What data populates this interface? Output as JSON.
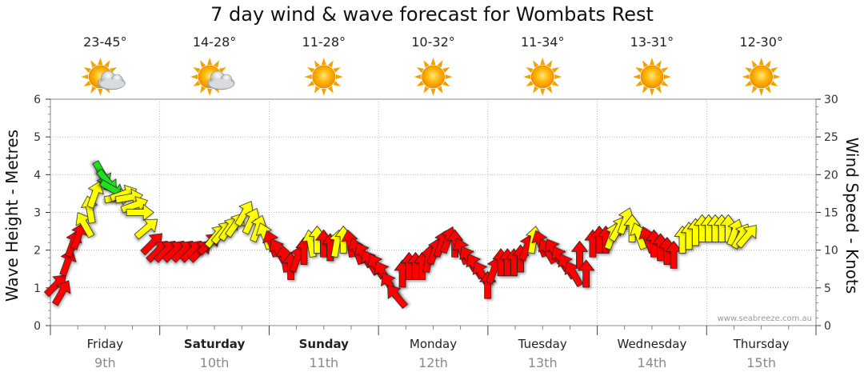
{
  "chart_data": {
    "type": "line",
    "title": "7 day wind & wave forecast for Wombats Rest",
    "ylabel_left": "Wave Height - Metres",
    "ylabel_right": "Wind Speed - Knots",
    "ylim_left": [
      0,
      6
    ],
    "ylim_right": [
      0,
      30
    ],
    "yticks_left": [
      "0",
      "1",
      "2",
      "3",
      "4",
      "5",
      "6"
    ],
    "yticks_right": [
      "0",
      "5",
      "10",
      "15",
      "20",
      "25",
      "30"
    ],
    "grid": "dotted vertical and horizontal",
    "watermark": "www.seabreeze.com.au",
    "days": [
      {
        "day": "Friday",
        "date": "9th",
        "temps": "23-45°",
        "weather": "partly-cloudy",
        "bold": false
      },
      {
        "day": "Saturday",
        "date": "10th",
        "temps": "14-28°",
        "weather": "partly-cloudy",
        "bold": true
      },
      {
        "day": "Sunday",
        "date": "11th",
        "temps": "11-28°",
        "weather": "sunny",
        "bold": true
      },
      {
        "day": "Monday",
        "date": "12th",
        "temps": "10-32°",
        "weather": "sunny",
        "bold": false
      },
      {
        "day": "Tuesday",
        "date": "13th",
        "temps": "11-34°",
        "weather": "sunny",
        "bold": false
      },
      {
        "day": "Wednesday",
        "date": "14th",
        "temps": "13-31°",
        "weather": "sunny",
        "bold": false
      },
      {
        "day": "Thursday",
        "date": "15th",
        "temps": "12-30°",
        "weather": "sunny",
        "bold": false
      }
    ],
    "wind_arrow_colors": {
      "red": "#ff0000",
      "yellow": "#ffff00",
      "green": "#22dd22"
    },
    "wind_points": [
      {
        "t": 0.0,
        "speed": 5.5,
        "dir": 225,
        "c": "red"
      },
      {
        "t": 0.05,
        "speed": 4.5,
        "dir": 210,
        "c": "red"
      },
      {
        "t": 0.1,
        "speed": 8.5,
        "dir": 200,
        "c": "red"
      },
      {
        "t": 0.15,
        "speed": 11.0,
        "dir": 200,
        "c": "red"
      },
      {
        "t": 0.2,
        "speed": 12.0,
        "dir": 200,
        "c": "red"
      },
      {
        "t": 0.25,
        "speed": 13.5,
        "dir": 150,
        "c": "yellow"
      },
      {
        "t": 0.3,
        "speed": 15.5,
        "dir": 170,
        "c": "yellow"
      },
      {
        "t": 0.35,
        "speed": 17.5,
        "dir": 200,
        "c": "yellow"
      },
      {
        "t": 0.42,
        "speed": 20.0,
        "dir": 330,
        "c": "green"
      },
      {
        "t": 0.47,
        "speed": 19.0,
        "dir": 320,
        "c": "green"
      },
      {
        "t": 0.52,
        "speed": 18.0,
        "dir": 300,
        "c": "green"
      },
      {
        "t": 0.57,
        "speed": 17.0,
        "dir": 260,
        "c": "yellow"
      },
      {
        "t": 0.62,
        "speed": 17.5,
        "dir": 250,
        "c": "yellow"
      },
      {
        "t": 0.67,
        "speed": 17.0,
        "dir": 260,
        "c": "yellow"
      },
      {
        "t": 0.72,
        "speed": 16.0,
        "dir": 250,
        "c": "yellow"
      },
      {
        "t": 0.77,
        "speed": 15.0,
        "dir": 270,
        "c": "yellow"
      },
      {
        "t": 0.83,
        "speed": 13.0,
        "dir": 230,
        "c": "yellow"
      },
      {
        "t": 0.88,
        "speed": 11.0,
        "dir": 225,
        "c": "red"
      },
      {
        "t": 0.93,
        "speed": 10.0,
        "dir": 225,
        "c": "red"
      },
      {
        "t": 1.0,
        "speed": 10.0,
        "dir": 225,
        "c": "red"
      },
      {
        "t": 1.08,
        "speed": 10.0,
        "dir": 225,
        "c": "red"
      },
      {
        "t": 1.16,
        "speed": 10.0,
        "dir": 225,
        "c": "red"
      },
      {
        "t": 1.24,
        "speed": 10.0,
        "dir": 225,
        "c": "red"
      },
      {
        "t": 1.32,
        "speed": 10.0,
        "dir": 225,
        "c": "red"
      },
      {
        "t": 1.4,
        "speed": 11.0,
        "dir": 225,
        "c": "red"
      },
      {
        "t": 1.46,
        "speed": 12.0,
        "dir": 220,
        "c": "yellow"
      },
      {
        "t": 1.52,
        "speed": 12.5,
        "dir": 220,
        "c": "yellow"
      },
      {
        "t": 1.58,
        "speed": 13.0,
        "dir": 215,
        "c": "yellow"
      },
      {
        "t": 1.64,
        "speed": 13.5,
        "dir": 215,
        "c": "yellow"
      },
      {
        "t": 1.72,
        "speed": 15.0,
        "dir": 210,
        "c": "yellow"
      },
      {
        "t": 1.78,
        "speed": 14.0,
        "dir": 205,
        "c": "yellow"
      },
      {
        "t": 1.84,
        "speed": 13.0,
        "dir": 200,
        "c": "yellow"
      },
      {
        "t": 1.9,
        "speed": 12.0,
        "dir": 160,
        "c": "yellow"
      },
      {
        "t": 1.96,
        "speed": 11.0,
        "dir": 160,
        "c": "red"
      },
      {
        "t": 2.02,
        "speed": 10.0,
        "dir": 150,
        "c": "red"
      },
      {
        "t": 2.08,
        "speed": 9.0,
        "dir": 170,
        "c": "red"
      },
      {
        "t": 2.14,
        "speed": 8.0,
        "dir": 180,
        "c": "red"
      },
      {
        "t": 2.2,
        "speed": 9.0,
        "dir": 200,
        "c": "red"
      },
      {
        "t": 2.26,
        "speed": 10.0,
        "dir": 180,
        "c": "red"
      },
      {
        "t": 2.32,
        "speed": 11.0,
        "dir": 170,
        "c": "yellow"
      },
      {
        "t": 2.38,
        "speed": 11.5,
        "dir": 180,
        "c": "yellow"
      },
      {
        "t": 2.44,
        "speed": 11.0,
        "dir": 180,
        "c": "red"
      },
      {
        "t": 2.5,
        "speed": 10.5,
        "dir": 180,
        "c": "red"
      },
      {
        "t": 2.56,
        "speed": 11.0,
        "dir": 190,
        "c": "yellow"
      },
      {
        "t": 2.62,
        "speed": 11.5,
        "dir": 180,
        "c": "yellow"
      },
      {
        "t": 2.68,
        "speed": 11.0,
        "dir": 170,
        "c": "red"
      },
      {
        "t": 2.74,
        "speed": 10.0,
        "dir": 160,
        "c": "red"
      },
      {
        "t": 2.8,
        "speed": 9.5,
        "dir": 150,
        "c": "red"
      },
      {
        "t": 2.86,
        "speed": 8.5,
        "dir": 150,
        "c": "red"
      },
      {
        "t": 2.92,
        "speed": 8.0,
        "dir": 150,
        "c": "red"
      },
      {
        "t": 2.98,
        "speed": 7.0,
        "dir": 150,
        "c": "red"
      },
      {
        "t": 3.04,
        "speed": 5.5,
        "dir": 150,
        "c": "red"
      },
      {
        "t": 3.1,
        "speed": 4.0,
        "dir": 140,
        "c": "red"
      },
      {
        "t": 3.16,
        "speed": 7.0,
        "dir": 180,
        "c": "red"
      },
      {
        "t": 3.22,
        "speed": 8.0,
        "dir": 180,
        "c": "red"
      },
      {
        "t": 3.28,
        "speed": 8.0,
        "dir": 180,
        "c": "red"
      },
      {
        "t": 3.34,
        "speed": 8.0,
        "dir": 180,
        "c": "red"
      },
      {
        "t": 3.4,
        "speed": 9.0,
        "dir": 190,
        "c": "red"
      },
      {
        "t": 3.46,
        "speed": 10.0,
        "dir": 200,
        "c": "red"
      },
      {
        "t": 3.52,
        "speed": 11.0,
        "dir": 200,
        "c": "red"
      },
      {
        "t": 3.58,
        "speed": 11.5,
        "dir": 200,
        "c": "red"
      },
      {
        "t": 3.64,
        "speed": 11.0,
        "dir": 180,
        "c": "red"
      },
      {
        "t": 3.7,
        "speed": 10.0,
        "dir": 160,
        "c": "red"
      },
      {
        "t": 3.76,
        "speed": 9.0,
        "dir": 150,
        "c": "red"
      },
      {
        "t": 3.82,
        "speed": 8.0,
        "dir": 150,
        "c": "red"
      },
      {
        "t": 3.88,
        "speed": 7.0,
        "dir": 150,
        "c": "red"
      },
      {
        "t": 3.94,
        "speed": 5.5,
        "dir": 180,
        "c": "red"
      },
      {
        "t": 4.0,
        "speed": 7.5,
        "dir": 200,
        "c": "red"
      },
      {
        "t": 4.06,
        "speed": 8.5,
        "dir": 180,
        "c": "red"
      },
      {
        "t": 4.12,
        "speed": 8.5,
        "dir": 180,
        "c": "red"
      },
      {
        "t": 4.18,
        "speed": 8.5,
        "dir": 180,
        "c": "red"
      },
      {
        "t": 4.24,
        "speed": 9.0,
        "dir": 180,
        "c": "red"
      },
      {
        "t": 4.3,
        "speed": 10.5,
        "dir": 200,
        "c": "red"
      },
      {
        "t": 4.36,
        "speed": 11.5,
        "dir": 190,
        "c": "yellow"
      },
      {
        "t": 4.42,
        "speed": 11.0,
        "dir": 160,
        "c": "red"
      },
      {
        "t": 4.48,
        "speed": 10.0,
        "dir": 150,
        "c": "red"
      },
      {
        "t": 4.54,
        "speed": 10.0,
        "dir": 150,
        "c": "red"
      },
      {
        "t": 4.6,
        "speed": 9.0,
        "dir": 150,
        "c": "red"
      },
      {
        "t": 4.66,
        "speed": 8.0,
        "dir": 150,
        "c": "red"
      },
      {
        "t": 4.72,
        "speed": 7.0,
        "dir": 150,
        "c": "red"
      },
      {
        "t": 4.78,
        "speed": 9.5,
        "dir": 180,
        "c": "red"
      },
      {
        "t": 4.84,
        "speed": 7.0,
        "dir": 180,
        "c": "red"
      },
      {
        "t": 4.9,
        "speed": 11.0,
        "dir": 180,
        "c": "red"
      },
      {
        "t": 4.96,
        "speed": 11.5,
        "dir": 180,
        "c": "red"
      },
      {
        "t": 5.02,
        "speed": 11.5,
        "dir": 180,
        "c": "red"
      },
      {
        "t": 5.08,
        "speed": 12.0,
        "dir": 200,
        "c": "yellow"
      },
      {
        "t": 5.14,
        "speed": 13.0,
        "dir": 210,
        "c": "yellow"
      },
      {
        "t": 5.2,
        "speed": 14.0,
        "dir": 200,
        "c": "yellow"
      },
      {
        "t": 5.26,
        "speed": 13.0,
        "dir": 180,
        "c": "yellow"
      },
      {
        "t": 5.32,
        "speed": 12.0,
        "dir": 160,
        "c": "yellow"
      },
      {
        "t": 5.4,
        "speed": 11.5,
        "dir": 160,
        "c": "red"
      },
      {
        "t": 5.46,
        "speed": 11.0,
        "dir": 180,
        "c": "red"
      },
      {
        "t": 5.52,
        "speed": 10.5,
        "dir": 180,
        "c": "red"
      },
      {
        "t": 5.58,
        "speed": 10.0,
        "dir": 180,
        "c": "red"
      },
      {
        "t": 5.64,
        "speed": 9.5,
        "dir": 180,
        "c": "red"
      },
      {
        "t": 5.72,
        "speed": 11.5,
        "dir": 180,
        "c": "yellow"
      },
      {
        "t": 5.78,
        "speed": 12.0,
        "dir": 180,
        "c": "yellow"
      },
      {
        "t": 5.84,
        "speed": 12.5,
        "dir": 180,
        "c": "yellow"
      },
      {
        "t": 5.9,
        "speed": 13.0,
        "dir": 180,
        "c": "yellow"
      },
      {
        "t": 5.96,
        "speed": 13.0,
        "dir": 180,
        "c": "yellow"
      },
      {
        "t": 6.02,
        "speed": 13.0,
        "dir": 180,
        "c": "yellow"
      },
      {
        "t": 6.08,
        "speed": 13.0,
        "dir": 180,
        "c": "yellow"
      },
      {
        "t": 6.14,
        "speed": 13.0,
        "dir": 180,
        "c": "yellow"
      },
      {
        "t": 6.2,
        "speed": 12.5,
        "dir": 200,
        "c": "yellow"
      },
      {
        "t": 6.26,
        "speed": 12.0,
        "dir": 210,
        "c": "yellow"
      },
      {
        "t": 6.32,
        "speed": 12.0,
        "dir": 220,
        "c": "yellow"
      }
    ]
  }
}
